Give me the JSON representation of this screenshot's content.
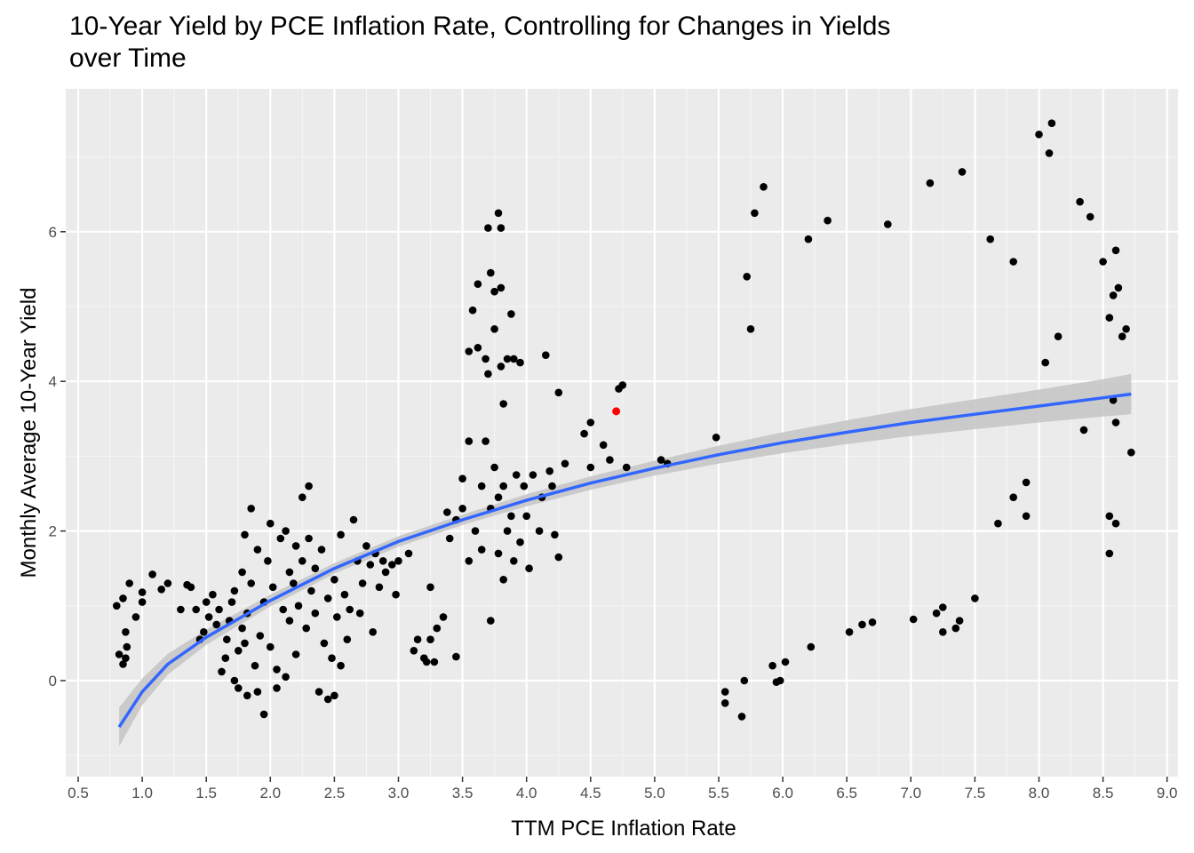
{
  "title_line1": "10-Year Yield by PCE Inflation Rate, Controlling for Changes in Yields",
  "title_line2": "over Time",
  "chart_data": {
    "type": "scatter",
    "title": "10-Year Yield by PCE Inflation Rate, Controlling for Changes in Yields over Time",
    "xlabel": "TTM PCE Inflation Rate",
    "ylabel": "Monthly Average 10-Year Yield",
    "xlim": [
      0.5,
      9.0
    ],
    "ylim": [
      -1.0,
      7.8
    ],
    "x_ticks": [
      "0.5",
      "1.0",
      "1.5",
      "2.0",
      "2.5",
      "3.0",
      "3.5",
      "4.0",
      "4.5",
      "5.0",
      "5.5",
      "6.0",
      "6.5",
      "7.0",
      "7.5",
      "8.0",
      "8.5",
      "9.0"
    ],
    "y_ticks": [
      "0",
      "2",
      "4",
      "6"
    ],
    "grid": true,
    "colors": {
      "panel": "#ebebeb",
      "grid": "#ffffff",
      "points": "#000000",
      "highlight": "#ff0000",
      "fit_line": "#3366ff",
      "ribbon": "#c4c4c4"
    },
    "highlight_point": {
      "x": 4.7,
      "y": 3.6
    },
    "fit": {
      "x": [
        0.82,
        1.0,
        1.2,
        1.5,
        2.0,
        2.5,
        3.0,
        3.5,
        4.0,
        4.5,
        5.0,
        5.5,
        6.0,
        6.5,
        7.0,
        7.5,
        8.0,
        8.5,
        8.72
      ],
      "y": [
        -0.62,
        -0.15,
        0.22,
        0.58,
        1.07,
        1.5,
        1.86,
        2.15,
        2.41,
        2.64,
        2.84,
        3.02,
        3.18,
        3.32,
        3.45,
        3.56,
        3.67,
        3.78,
        3.83
      ],
      "lower": [
        -0.88,
        -0.33,
        0.08,
        0.48,
        0.99,
        1.43,
        1.79,
        2.08,
        2.33,
        2.55,
        2.74,
        2.9,
        3.04,
        3.16,
        3.27,
        3.36,
        3.45,
        3.53,
        3.56
      ],
      "upper": [
        -0.36,
        0.03,
        0.36,
        0.68,
        1.15,
        1.57,
        1.93,
        2.22,
        2.49,
        2.73,
        2.94,
        3.14,
        3.32,
        3.48,
        3.63,
        3.76,
        3.89,
        4.03,
        4.1
      ]
    },
    "points": [
      [
        0.8,
        1.0
      ],
      [
        0.82,
        0.35
      ],
      [
        0.85,
        0.22
      ],
      [
        0.87,
        0.3
      ],
      [
        0.88,
        0.45
      ],
      [
        0.87,
        0.65
      ],
      [
        0.9,
        1.3
      ],
      [
        0.85,
        1.1
      ],
      [
        0.95,
        0.85
      ],
      [
        1.0,
        1.18
      ],
      [
        1.0,
        1.05
      ],
      [
        1.08,
        1.42
      ],
      [
        1.15,
        1.22
      ],
      [
        1.2,
        1.3
      ],
      [
        1.3,
        0.95
      ],
      [
        1.38,
        1.25
      ],
      [
        1.35,
        1.28
      ],
      [
        1.45,
        0.55
      ],
      [
        1.42,
        0.95
      ],
      [
        1.48,
        0.65
      ],
      [
        1.5,
        1.05
      ],
      [
        1.52,
        0.85
      ],
      [
        1.55,
        1.15
      ],
      [
        1.58,
        0.75
      ],
      [
        1.6,
        0.95
      ],
      [
        1.62,
        0.12
      ],
      [
        1.65,
        0.3
      ],
      [
        1.66,
        0.55
      ],
      [
        1.68,
        0.8
      ],
      [
        1.7,
        1.05
      ],
      [
        1.72,
        1.2
      ],
      [
        1.72,
        0.0
      ],
      [
        1.75,
        0.4
      ],
      [
        1.75,
        -0.1
      ],
      [
        1.78,
        0.7
      ],
      [
        1.78,
        1.45
      ],
      [
        1.8,
        1.95
      ],
      [
        1.8,
        0.5
      ],
      [
        1.82,
        -0.2
      ],
      [
        1.82,
        0.9
      ],
      [
        1.85,
        1.3
      ],
      [
        1.85,
        2.3
      ],
      [
        1.88,
        0.2
      ],
      [
        1.9,
        1.75
      ],
      [
        1.9,
        -0.15
      ],
      [
        1.92,
        0.6
      ],
      [
        1.95,
        1.05
      ],
      [
        1.95,
        -0.45
      ],
      [
        1.98,
        1.6
      ],
      [
        2.0,
        2.1
      ],
      [
        2.0,
        0.45
      ],
      [
        2.02,
        1.25
      ],
      [
        2.05,
        -0.1
      ],
      [
        2.05,
        0.15
      ],
      [
        2.08,
        1.9
      ],
      [
        2.1,
        0.95
      ],
      [
        2.12,
        2.0
      ],
      [
        2.12,
        0.05
      ],
      [
        2.15,
        0.8
      ],
      [
        2.15,
        1.45
      ],
      [
        2.18,
        1.3
      ],
      [
        2.2,
        0.35
      ],
      [
        2.2,
        1.8
      ],
      [
        2.22,
        1.0
      ],
      [
        2.25,
        1.6
      ],
      [
        2.25,
        2.45
      ],
      [
        2.28,
        0.7
      ],
      [
        2.3,
        1.9
      ],
      [
        2.3,
        2.6
      ],
      [
        2.32,
        1.2
      ],
      [
        2.35,
        0.9
      ],
      [
        2.35,
        1.5
      ],
      [
        2.38,
        -0.15
      ],
      [
        2.4,
        1.75
      ],
      [
        2.42,
        0.5
      ],
      [
        2.45,
        1.1
      ],
      [
        2.45,
        -0.25
      ],
      [
        2.48,
        0.3
      ],
      [
        2.5,
        1.35
      ],
      [
        2.5,
        -0.2
      ],
      [
        2.52,
        0.85
      ],
      [
        2.55,
        1.95
      ],
      [
        2.55,
        0.2
      ],
      [
        2.58,
        1.15
      ],
      [
        2.6,
        0.55
      ],
      [
        2.62,
        0.95
      ],
      [
        2.65,
        2.15
      ],
      [
        2.68,
        1.6
      ],
      [
        2.7,
        0.9
      ],
      [
        2.72,
        1.3
      ],
      [
        2.75,
        1.8
      ],
      [
        2.78,
        1.55
      ],
      [
        2.8,
        0.65
      ],
      [
        2.82,
        1.7
      ],
      [
        2.85,
        1.25
      ],
      [
        2.88,
        1.6
      ],
      [
        2.9,
        1.45
      ],
      [
        2.95,
        1.55
      ],
      [
        3.0,
        1.6
      ],
      [
        2.98,
        1.15
      ],
      [
        3.08,
        1.7
      ],
      [
        3.12,
        0.4
      ],
      [
        3.15,
        0.55
      ],
      [
        3.2,
        0.3
      ],
      [
        3.22,
        0.25
      ],
      [
        3.25,
        1.25
      ],
      [
        3.25,
        0.55
      ],
      [
        3.28,
        0.25
      ],
      [
        3.3,
        0.7
      ],
      [
        3.35,
        0.85
      ],
      [
        3.38,
        2.25
      ],
      [
        3.4,
        1.9
      ],
      [
        3.45,
        2.15
      ],
      [
        3.45,
        0.32
      ],
      [
        3.5,
        2.3
      ],
      [
        3.5,
        2.7
      ],
      [
        3.55,
        1.6
      ],
      [
        3.55,
        3.2
      ],
      [
        3.55,
        4.4
      ],
      [
        3.58,
        4.95
      ],
      [
        3.6,
        2.0
      ],
      [
        3.62,
        4.45
      ],
      [
        3.62,
        5.3
      ],
      [
        3.65,
        1.75
      ],
      [
        3.65,
        2.6
      ],
      [
        3.68,
        4.3
      ],
      [
        3.68,
        3.2
      ],
      [
        3.7,
        4.1
      ],
      [
        3.7,
        6.05
      ],
      [
        3.72,
        2.3
      ],
      [
        3.72,
        5.45
      ],
      [
        3.72,
        0.8
      ],
      [
        3.75,
        2.85
      ],
      [
        3.75,
        5.2
      ],
      [
        3.75,
        4.7
      ],
      [
        3.78,
        1.7
      ],
      [
        3.78,
        2.45
      ],
      [
        3.78,
        6.25
      ],
      [
        3.8,
        4.2
      ],
      [
        3.8,
        6.05
      ],
      [
        3.8,
        5.25
      ],
      [
        3.82,
        2.6
      ],
      [
        3.82,
        1.35
      ],
      [
        3.82,
        3.7
      ],
      [
        3.85,
        2.0
      ],
      [
        3.85,
        4.3
      ],
      [
        3.88,
        4.9
      ],
      [
        3.88,
        2.2
      ],
      [
        3.9,
        1.6
      ],
      [
        3.9,
        4.3
      ],
      [
        3.92,
        2.75
      ],
      [
        3.95,
        1.85
      ],
      [
        3.95,
        4.25
      ],
      [
        3.98,
        2.6
      ],
      [
        4.0,
        2.2
      ],
      [
        4.02,
        1.5
      ],
      [
        4.05,
        2.75
      ],
      [
        4.1,
        2.0
      ],
      [
        4.12,
        2.45
      ],
      [
        4.15,
        4.35
      ],
      [
        4.18,
        2.8
      ],
      [
        4.2,
        2.6
      ],
      [
        4.22,
        1.95
      ],
      [
        4.25,
        1.65
      ],
      [
        4.25,
        3.85
      ],
      [
        4.3,
        2.9
      ],
      [
        4.45,
        3.3
      ],
      [
        4.5,
        2.85
      ],
      [
        4.5,
        3.45
      ],
      [
        4.6,
        3.15
      ],
      [
        4.65,
        2.95
      ],
      [
        4.72,
        3.9
      ],
      [
        4.75,
        3.95
      ],
      [
        4.78,
        2.85
      ],
      [
        5.05,
        2.95
      ],
      [
        5.1,
        2.9
      ],
      [
        5.48,
        3.25
      ],
      [
        5.55,
        -0.15
      ],
      [
        5.55,
        -0.3
      ],
      [
        5.68,
        -0.48
      ],
      [
        5.7,
        0.0
      ],
      [
        5.72,
        5.4
      ],
      [
        5.75,
        4.7
      ],
      [
        5.78,
        6.25
      ],
      [
        5.85,
        6.6
      ],
      [
        5.92,
        0.2
      ],
      [
        5.95,
        -0.02
      ],
      [
        5.98,
        0.0
      ],
      [
        6.02,
        0.25
      ],
      [
        6.22,
        0.45
      ],
      [
        6.2,
        5.9
      ],
      [
        6.35,
        6.15
      ],
      [
        6.52,
        0.65
      ],
      [
        6.62,
        0.75
      ],
      [
        6.7,
        0.78
      ],
      [
        6.82,
        6.1
      ],
      [
        7.02,
        0.82
      ],
      [
        7.15,
        6.65
      ],
      [
        7.2,
        0.9
      ],
      [
        7.25,
        0.98
      ],
      [
        7.25,
        0.65
      ],
      [
        7.35,
        0.7
      ],
      [
        7.4,
        6.8
      ],
      [
        7.38,
        0.8
      ],
      [
        7.5,
        1.1
      ],
      [
        7.62,
        5.9
      ],
      [
        7.68,
        2.1
      ],
      [
        7.8,
        2.45
      ],
      [
        7.8,
        5.6
      ],
      [
        7.9,
        2.65
      ],
      [
        7.9,
        2.2
      ],
      [
        8.0,
        7.3
      ],
      [
        8.05,
        4.25
      ],
      [
        8.08,
        7.05
      ],
      [
        8.1,
        7.45
      ],
      [
        8.15,
        4.6
      ],
      [
        8.32,
        6.4
      ],
      [
        8.35,
        3.35
      ],
      [
        8.4,
        6.2
      ],
      [
        8.5,
        5.6
      ],
      [
        8.55,
        2.2
      ],
      [
        8.55,
        1.7
      ],
      [
        8.55,
        4.85
      ],
      [
        8.58,
        3.75
      ],
      [
        8.58,
        5.15
      ],
      [
        8.6,
        5.75
      ],
      [
        8.6,
        3.45
      ],
      [
        8.6,
        2.1
      ],
      [
        8.62,
        5.25
      ],
      [
        8.65,
        4.6
      ],
      [
        8.68,
        4.7
      ],
      [
        8.72,
        3.05
      ]
    ]
  }
}
